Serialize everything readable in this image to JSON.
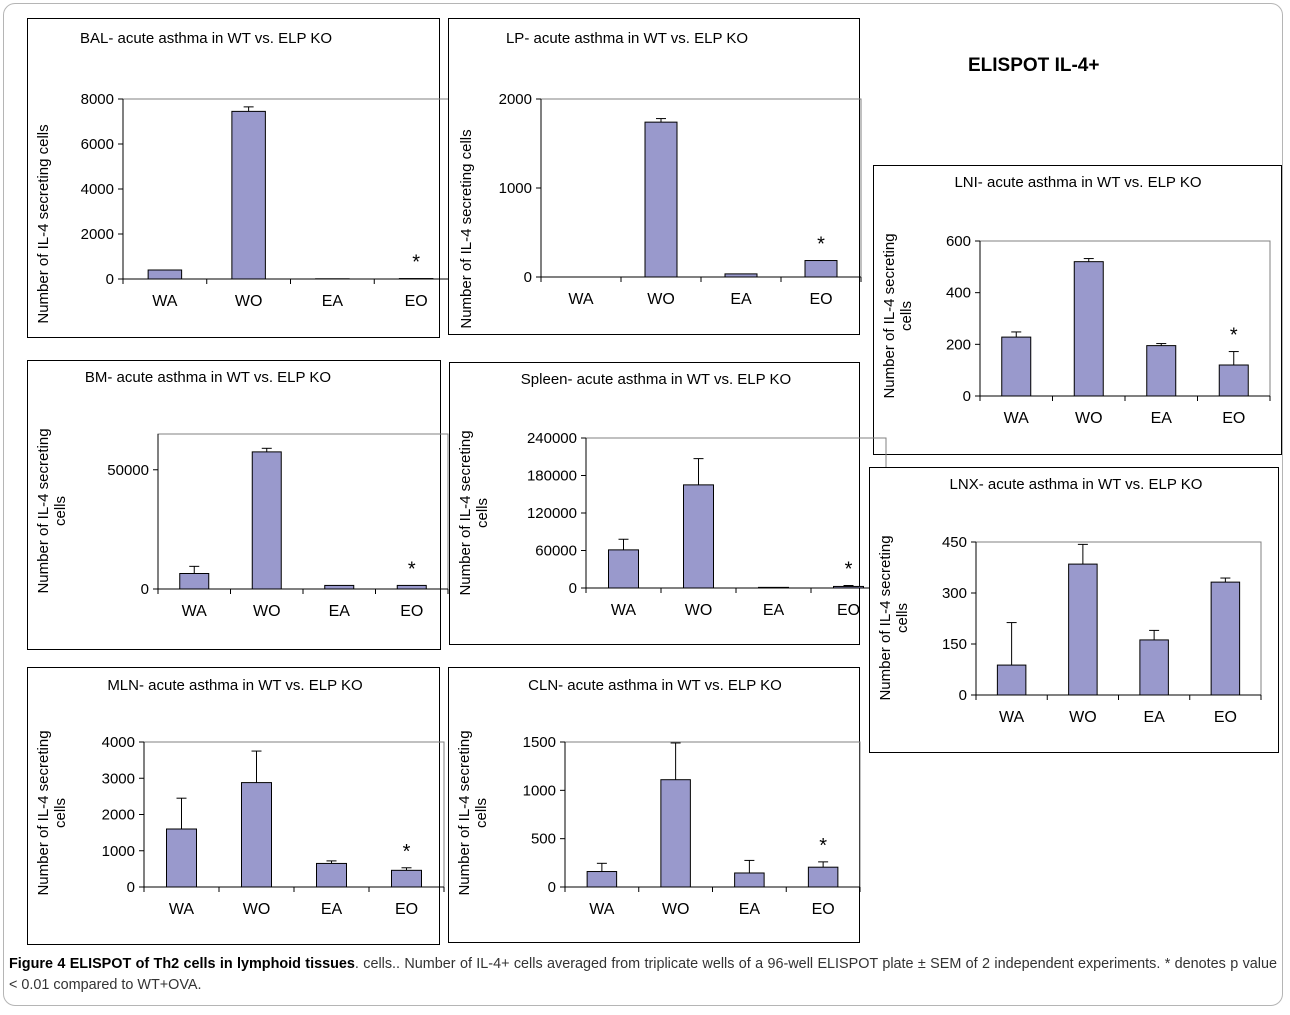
{
  "figure_title": "ELISPOT IL-4+",
  "caption": {
    "label": "Figure 4 ELISPOT of Th2 cells in lymphoid tissues",
    "text": ". cells.. Number of IL-4+ cells averaged from triplicate wells of a 96-well ELISPOT plate ± SEM of 2 independent experiments. * denotes p value < 0.01 compared to WT+OVA."
  },
  "colors": {
    "bar": "#9999cc",
    "bar_stroke": "#000000",
    "axis": "#000000",
    "plot_border": "#808080"
  },
  "chart_data": [
    {
      "id": "bal",
      "type": "bar",
      "title": "BAL- acute asthma in WT vs. ELP KO",
      "ylabel": [
        "Number of IL-4 secreting cells"
      ],
      "categories": [
        "WA",
        "WO",
        "EA",
        "EO"
      ],
      "values": [
        400,
        7450,
        10,
        20
      ],
      "errors": [
        0,
        200,
        0,
        0
      ],
      "ylim": [
        0,
        8000
      ],
      "yticks": [
        0,
        2000,
        4000,
        6000,
        8000
      ],
      "tick_labels": [
        "0",
        "2000",
        "4000",
        "6000",
        "8000"
      ],
      "significance": [
        {
          "category": "EO",
          "label": "*"
        }
      ]
    },
    {
      "id": "lp",
      "type": "bar",
      "title": "LP- acute asthma in WT vs. ELP KO",
      "ylabel": [
        "Number of IL-4 secreting cells"
      ],
      "categories": [
        "WA",
        "WO",
        "EA",
        "EO"
      ],
      "values": [
        0,
        1740,
        35,
        185
      ],
      "errors": [
        0,
        40,
        0,
        0
      ],
      "ylim": [
        0,
        2000
      ],
      "yticks": [
        0,
        1000,
        2000
      ],
      "tick_labels": [
        "0",
        "1000",
        "2000"
      ],
      "significance": [
        {
          "category": "EO",
          "label": "*"
        }
      ]
    },
    {
      "id": "lni",
      "type": "bar",
      "title": "LNI- acute asthma in WT vs. ELP KO",
      "ylabel": [
        "Number of IL-4 secreting",
        "cells"
      ],
      "categories": [
        "WA",
        "WO",
        "EA",
        "EO"
      ],
      "values": [
        228,
        520,
        195,
        120
      ],
      "errors": [
        20,
        12,
        8,
        52
      ],
      "ylim": [
        0,
        600
      ],
      "yticks": [
        0,
        200,
        400,
        600
      ],
      "tick_labels": [
        "0",
        "200",
        "400",
        "600"
      ],
      "significance": [
        {
          "category": "EO",
          "label": "*"
        }
      ]
    },
    {
      "id": "bm",
      "type": "bar",
      "title": "BM- acute asthma in WT vs. ELP KO",
      "ylabel": [
        "Number of IL-4 secreting",
        "cells"
      ],
      "categories": [
        "WA",
        "WO",
        "EA",
        "EO"
      ],
      "values": [
        6500,
        57500,
        1500,
        1500
      ],
      "errors": [
        3000,
        1500,
        0,
        0
      ],
      "ylim": [
        0,
        65000
      ],
      "yticks": [
        0,
        50000
      ],
      "tick_labels": [
        "0",
        "50000"
      ],
      "significance": [
        {
          "category": "EO",
          "label": "*"
        }
      ]
    },
    {
      "id": "spleen",
      "type": "bar",
      "title": "Spleen- acute asthma in WT vs. ELP KO",
      "ylabel": [
        "Number of IL-4 secreting",
        "cells"
      ],
      "categories": [
        "WA",
        "WO",
        "EA",
        "EO"
      ],
      "values": [
        61000,
        165000,
        1000,
        2500
      ],
      "errors": [
        17000,
        42000,
        0,
        1500
      ],
      "ylim": [
        0,
        240000
      ],
      "yticks": [
        0,
        60000,
        120000,
        180000,
        240000
      ],
      "tick_labels": [
        "0",
        "60000",
        "120000",
        "180000",
        "240000"
      ],
      "significance": [
        {
          "category": "EO",
          "label": "*"
        }
      ]
    },
    {
      "id": "lnx",
      "type": "bar",
      "title": "LNX- acute asthma in WT vs. ELP KO",
      "ylabel": [
        "Number of IL-4 secreting",
        "cells"
      ],
      "categories": [
        "WA",
        "WO",
        "EA",
        "EO"
      ],
      "values": [
        88,
        385,
        162,
        332
      ],
      "errors": [
        125,
        58,
        28,
        12
      ],
      "ylim": [
        0,
        450
      ],
      "yticks": [
        0,
        150,
        300,
        450
      ],
      "tick_labels": [
        "0",
        "150",
        "300",
        "450"
      ],
      "significance": []
    },
    {
      "id": "mln",
      "type": "bar",
      "title": "MLN- acute asthma in WT vs. ELP KO",
      "ylabel": [
        "Number of IL-4 secreting",
        "cells"
      ],
      "categories": [
        "WA",
        "WO",
        "EA",
        "EO"
      ],
      "values": [
        1600,
        2880,
        650,
        460
      ],
      "errors": [
        850,
        870,
        70,
        70
      ],
      "ylim": [
        0,
        4000
      ],
      "yticks": [
        0,
        1000,
        2000,
        3000,
        4000
      ],
      "tick_labels": [
        "0",
        "1000",
        "2000",
        "3000",
        "4000"
      ],
      "significance": [
        {
          "category": "EO",
          "label": "*"
        }
      ]
    },
    {
      "id": "cln",
      "type": "bar",
      "title": "CLN- acute asthma in WT vs. ELP KO",
      "ylabel": [
        "Number of IL-4 secreting",
        "cells"
      ],
      "categories": [
        "WA",
        "WO",
        "EA",
        "EO"
      ],
      "values": [
        160,
        1110,
        145,
        205
      ],
      "errors": [
        85,
        380,
        130,
        55
      ],
      "ylim": [
        0,
        1500
      ],
      "yticks": [
        0,
        500,
        1000,
        1500
      ],
      "tick_labels": [
        "0",
        "500",
        "1000",
        "1500"
      ],
      "significance": [
        {
          "category": "EO",
          "label": "*"
        }
      ]
    }
  ]
}
